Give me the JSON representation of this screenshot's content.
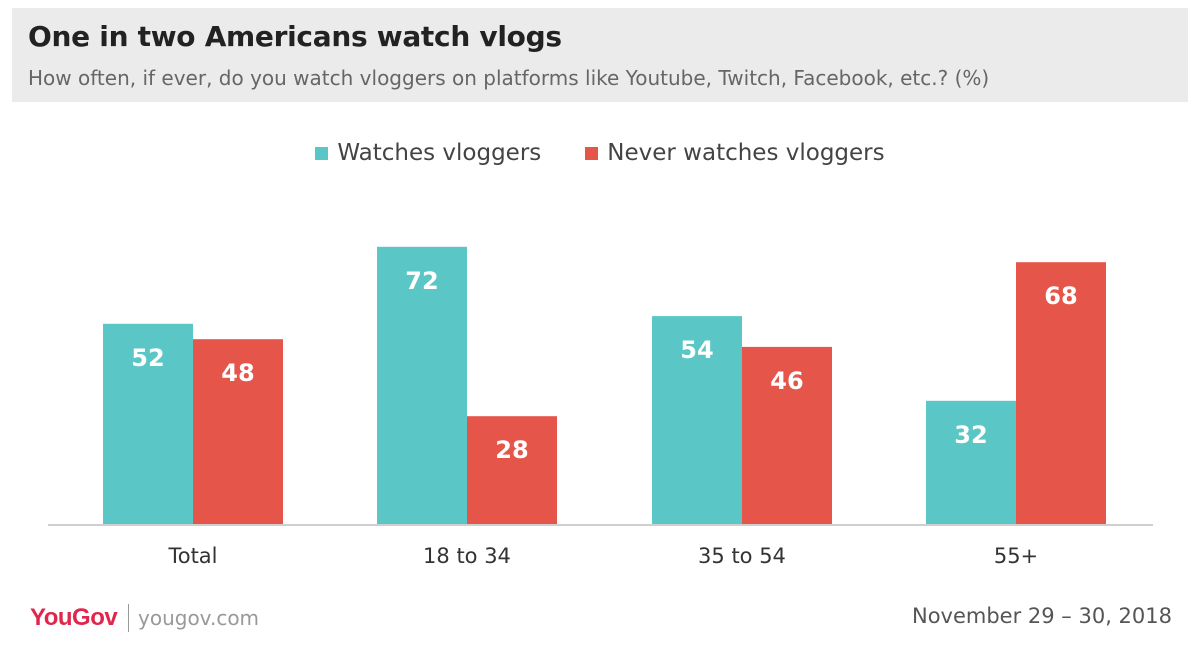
{
  "header": {
    "title": "One in two Americans watch vlogs",
    "subtitle": "How often, if ever, do you watch vloggers on platforms like Youtube, Twitch, Facebook, etc.? (%)"
  },
  "footer": {
    "brand": "YouGov",
    "site": "yougov.com",
    "date": "November 29 – 30, 2018"
  },
  "chart_data": {
    "type": "bar",
    "categories": [
      "Total",
      "18 to 34",
      "35 to 54",
      "55+"
    ],
    "series": [
      {
        "name": "Watches vloggers",
        "color": "#5bc6c6",
        "values": [
          52,
          72,
          54,
          32
        ]
      },
      {
        "name": "Never watches vloggers",
        "color": "#e5554a",
        "values": [
          48,
          28,
          46,
          68
        ]
      }
    ],
    "ylim": [
      0,
      100
    ],
    "grid": false,
    "legend": "top-center",
    "data_labels": true
  }
}
